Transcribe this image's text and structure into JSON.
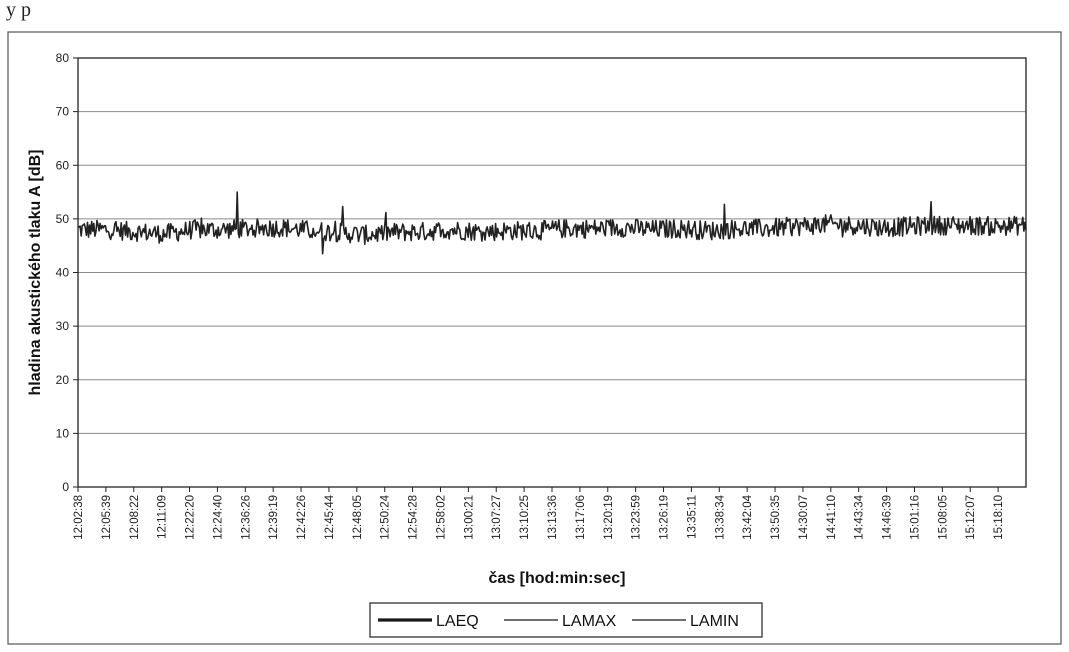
{
  "page": {
    "top_caption": "y p"
  },
  "chart_data": {
    "type": "line",
    "xlabel": "čas [hod:min:sec]",
    "ylabel": "hladina akustického tlaku A [dB]",
    "ylim": [
      0,
      80
    ],
    "yticks": [
      0,
      10,
      20,
      30,
      40,
      50,
      60,
      70,
      80
    ],
    "grid": true,
    "legend_position": "bottom",
    "x_tick_labels": [
      "12:02:38",
      "12:05:39",
      "12:08:22",
      "12:11:09",
      "12:22:20",
      "12:24:40",
      "12:36:26",
      "12:39:19",
      "12:42:26",
      "12:45:44",
      "12:48:05",
      "12:50:24",
      "12:54:28",
      "12:58:02",
      "13:00:21",
      "13:07:27",
      "13:10:25",
      "13:13:36",
      "13:17:06",
      "13:20:19",
      "13:23:59",
      "13:26:19",
      "13:35:11",
      "13:38:34",
      "13:42:04",
      "13:50:35",
      "14:30:07",
      "14:41:10",
      "14:43:34",
      "14:46:39",
      "15:01:16",
      "15:08:05",
      "15:12:07",
      "15:18:10"
    ],
    "series": [
      {
        "name": "LAEQ",
        "color": "#1a1a1a",
        "width": 3.2
      },
      {
        "name": "LAMAX",
        "color": "#1a1a1a",
        "width": 1.2
      },
      {
        "name": "LAMIN",
        "color": "#1a1a1a",
        "width": 1.2
      }
    ],
    "trace": {
      "baseline_db": [
        48.0,
        48.0,
        47.6,
        47.2,
        48.0,
        48.0,
        48.2,
        48.4,
        47.9,
        47.5,
        47.0,
        47.5,
        47.6,
        48.0,
        47.6,
        47.8,
        47.8,
        48.2,
        48.2,
        48.4,
        48.0,
        48.2,
        47.8,
        48.2,
        48.2,
        48.6,
        49.0,
        48.8,
        48.4,
        48.6,
        48.8,
        48.8,
        48.6,
        48.8
      ],
      "spikes_db": [
        {
          "at": 5.55,
          "value": 55.0
        },
        {
          "at": 8.5,
          "value": 43.5
        },
        {
          "at": 9.2,
          "value": 52.3
        },
        {
          "at": 22.5,
          "value": 52.7
        },
        {
          "at": 29.7,
          "value": 53.2
        }
      ]
    }
  }
}
